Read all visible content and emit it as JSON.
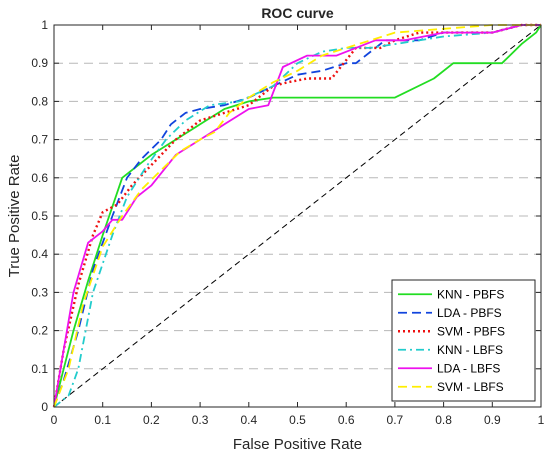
{
  "chart_data": {
    "type": "line",
    "title": "ROC curve",
    "xlabel": "False Positive Rate",
    "ylabel": "True Positive Rate",
    "xlim": [
      0,
      1
    ],
    "ylim": [
      0,
      1
    ],
    "xticks": [
      "0",
      "0.1",
      "0.2",
      "0.3",
      "0.4",
      "0.5",
      "0.6",
      "0.7",
      "0.8",
      "0.9",
      "1"
    ],
    "yticks": [
      "0",
      "0.1",
      "0.2",
      "0.3",
      "0.4",
      "0.5",
      "0.6",
      "0.7",
      "0.8",
      "0.9",
      "1"
    ],
    "grid": "horizontal dashed",
    "legend_position": "bottom-right",
    "diagonal": {
      "x": [
        0,
        1
      ],
      "y": [
        0,
        1
      ],
      "color": "#000000",
      "dash": "dashed"
    },
    "series": [
      {
        "name": "KNN - PBFS",
        "color": "#22dd22",
        "dash": "solid",
        "x": [
          0,
          0.02,
          0.04,
          0.07,
          0.1,
          0.14,
          0.17,
          0.2,
          0.25,
          0.3,
          0.35,
          0.4,
          0.45,
          0.7,
          0.78,
          0.82,
          0.92,
          0.96,
          0.99,
          1.0
        ],
        "y": [
          0,
          0.1,
          0.2,
          0.33,
          0.45,
          0.6,
          0.63,
          0.66,
          0.7,
          0.74,
          0.78,
          0.8,
          0.81,
          0.81,
          0.86,
          0.9,
          0.9,
          0.95,
          0.98,
          1.0
        ]
      },
      {
        "name": "LDA - PBFS",
        "color": "#1144dd",
        "dash": "dashed",
        "x": [
          0,
          0.02,
          0.05,
          0.08,
          0.12,
          0.15,
          0.18,
          0.22,
          0.24,
          0.27,
          0.3,
          0.35,
          0.4,
          0.45,
          0.5,
          0.55,
          0.6,
          0.62,
          0.68,
          0.75,
          0.8,
          0.9,
          0.96,
          1.0
        ],
        "y": [
          0,
          0.07,
          0.2,
          0.36,
          0.5,
          0.6,
          0.65,
          0.7,
          0.74,
          0.77,
          0.78,
          0.79,
          0.81,
          0.84,
          0.87,
          0.88,
          0.9,
          0.9,
          0.96,
          0.96,
          0.98,
          0.98,
          1.0,
          1.0
        ]
      },
      {
        "name": "SVM - PBFS",
        "color": "#ee1111",
        "dash": "dotted",
        "x": [
          0,
          0.02,
          0.05,
          0.08,
          0.1,
          0.13,
          0.16,
          0.19,
          0.22,
          0.25,
          0.3,
          0.35,
          0.4,
          0.45,
          0.48,
          0.52,
          0.57,
          0.62,
          0.67,
          0.7,
          0.75,
          0.9,
          0.96,
          1.0
        ],
        "y": [
          0,
          0.15,
          0.32,
          0.45,
          0.51,
          0.53,
          0.58,
          0.62,
          0.66,
          0.7,
          0.75,
          0.77,
          0.79,
          0.84,
          0.85,
          0.86,
          0.86,
          0.94,
          0.94,
          0.96,
          0.98,
          0.98,
          1.0,
          1.0
        ]
      },
      {
        "name": "KNN - LBFS",
        "color": "#22cccc",
        "dash": "dashdot",
        "x": [
          0,
          0.03,
          0.05,
          0.08,
          0.12,
          0.15,
          0.19,
          0.23,
          0.27,
          0.32,
          0.38,
          0.45,
          0.5,
          0.55,
          0.6,
          0.65,
          0.7,
          0.8,
          0.9,
          0.96,
          1.0
        ],
        "y": [
          0,
          0.03,
          0.1,
          0.3,
          0.45,
          0.55,
          0.63,
          0.7,
          0.75,
          0.79,
          0.8,
          0.84,
          0.9,
          0.93,
          0.94,
          0.94,
          0.95,
          0.97,
          0.98,
          1.0,
          1.0
        ]
      },
      {
        "name": "LDA - LBFS",
        "color": "#ee11ee",
        "dash": "solid",
        "x": [
          0,
          0.02,
          0.04,
          0.07,
          0.1,
          0.12,
          0.14,
          0.17,
          0.2,
          0.25,
          0.3,
          0.35,
          0.4,
          0.44,
          0.47,
          0.52,
          0.58,
          0.62,
          0.66,
          0.72,
          0.8,
          0.9,
          0.96,
          1.0
        ],
        "y": [
          0,
          0.15,
          0.3,
          0.43,
          0.46,
          0.49,
          0.49,
          0.55,
          0.58,
          0.66,
          0.7,
          0.74,
          0.78,
          0.79,
          0.89,
          0.92,
          0.92,
          0.94,
          0.96,
          0.96,
          0.98,
          0.98,
          1.0,
          1.0
        ]
      },
      {
        "name": "SVM - LBFS",
        "color": "#ffee00",
        "dash": "dashed",
        "x": [
          0,
          0.03,
          0.06,
          0.1,
          0.14,
          0.18,
          0.22,
          0.26,
          0.3,
          0.33,
          0.36,
          0.4,
          0.45,
          0.5,
          0.55,
          0.6,
          0.65,
          0.7,
          0.8,
          0.9,
          0.96,
          1.0
        ],
        "y": [
          0,
          0.1,
          0.27,
          0.42,
          0.5,
          0.57,
          0.62,
          0.67,
          0.7,
          0.72,
          0.77,
          0.81,
          0.85,
          0.88,
          0.92,
          0.94,
          0.96,
          0.98,
          0.99,
          1.0,
          1.0,
          1.0
        ]
      }
    ]
  }
}
